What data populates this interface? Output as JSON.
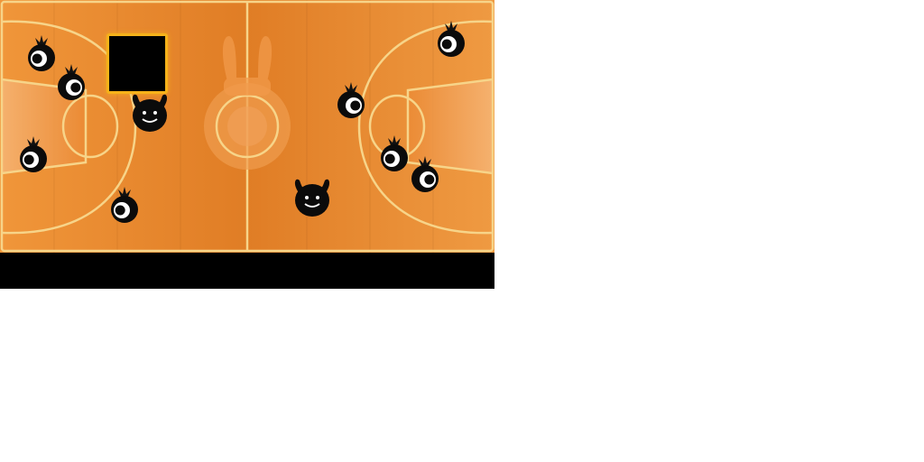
{
  "game": {
    "court_colors": {
      "floor": "#e8852a",
      "floor_dark": "#d9741e",
      "lines": "#f7d489",
      "paint_light": "#f3a25a",
      "hud_border": "#f6b21a"
    },
    "players": [
      {
        "name": "player-ghost-1",
        "facing": "left"
      },
      {
        "name": "player-ghost-2",
        "facing": "right"
      },
      {
        "name": "player-ghost-3",
        "facing": "left"
      },
      {
        "name": "player-ghost-4",
        "facing": "left"
      },
      {
        "name": "player-ghost-5",
        "facing": "right"
      },
      {
        "name": "player-ghost-6",
        "facing": "left"
      },
      {
        "name": "player-ghost-7",
        "facing": "left"
      },
      {
        "name": "player-ghost-8",
        "facing": "right"
      }
    ],
    "bosses": [
      {
        "name": "horned-monster-left"
      },
      {
        "name": "horned-monster-right"
      }
    ],
    "center_logo": "bunny-ears-icon"
  }
}
